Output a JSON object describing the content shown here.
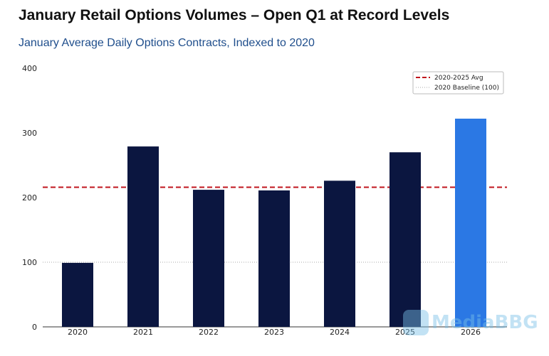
{
  "chart_data": {
    "type": "bar",
    "title": "January Retail Options Volumes – Open Q1 at Record Levels",
    "subtitle": "January Average Daily Options Contracts, Indexed to 2020",
    "xlabel": "",
    "ylabel": "",
    "categories": [
      "2020",
      "2021",
      "2022",
      "2023",
      "2024",
      "2025",
      "2026"
    ],
    "values": [
      99,
      279,
      212,
      211,
      226,
      270,
      322
    ],
    "bar_colors": [
      "#0b1640",
      "#0b1640",
      "#0b1640",
      "#0b1640",
      "#0b1640",
      "#0b1640",
      "#2b78e4"
    ],
    "ylim": [
      0,
      400
    ],
    "yticks": [
      0,
      100,
      200,
      300,
      400
    ],
    "grid": false,
    "reference_lines": [
      {
        "name": "2020-2025 Avg",
        "value": 216,
        "color": "#c0141c",
        "style": "dashed"
      },
      {
        "name": "2020 Baseline (100)",
        "value": 100,
        "color": "#aaaaaa",
        "style": "dotted"
      }
    ],
    "legend_position": "top-right"
  },
  "watermark": "MediaBBG"
}
